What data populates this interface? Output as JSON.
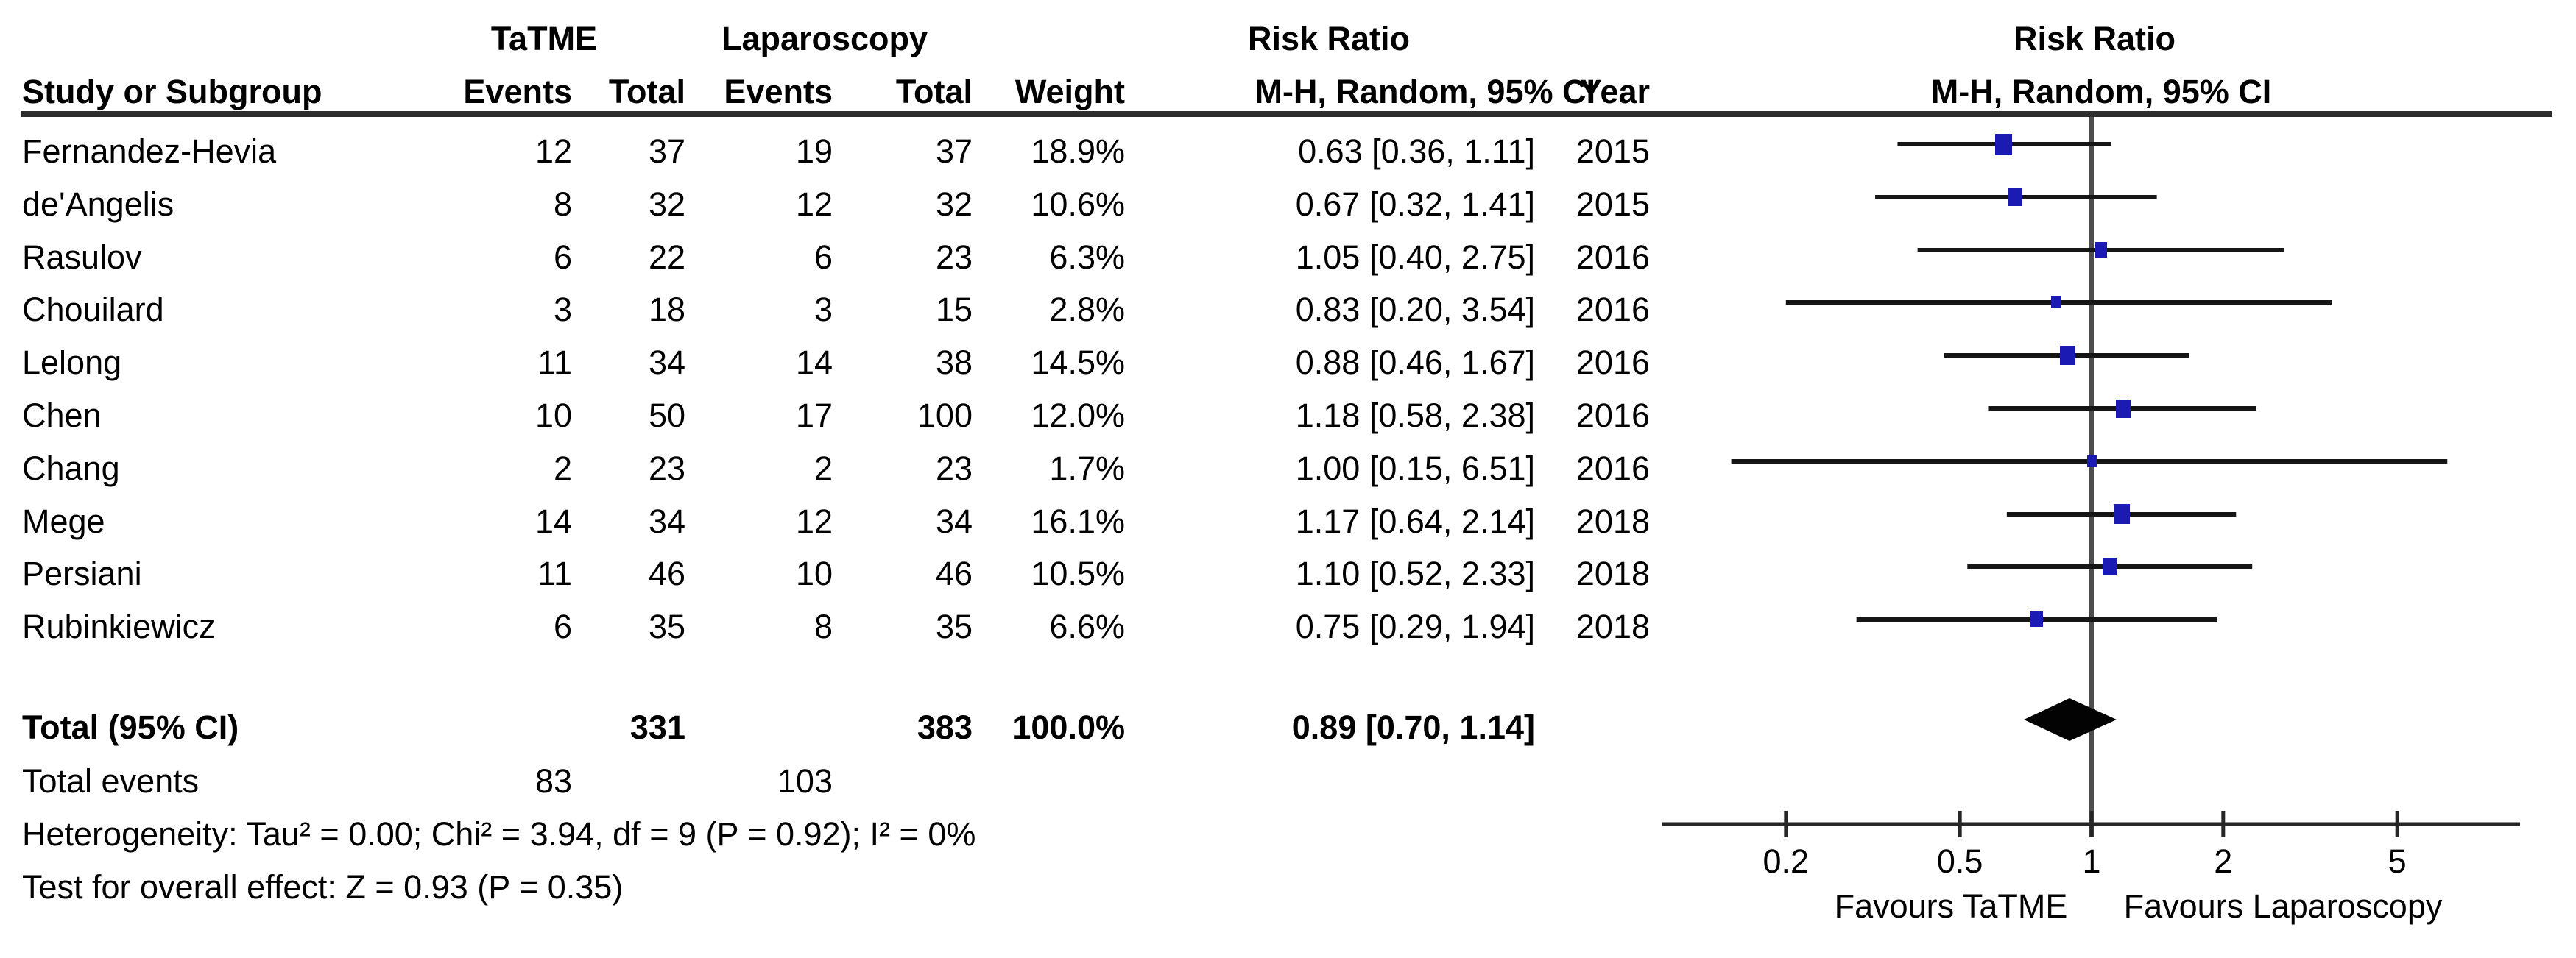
{
  "figure": {
    "group_headers": {
      "tatme": "TaTME",
      "laparoscopy": "Laparoscopy",
      "risk_ratio_col": "Risk Ratio",
      "risk_ratio_plot": "Risk Ratio"
    },
    "column_headers": {
      "study": "Study or Subgroup",
      "events1": "Events",
      "total1": "Total",
      "events2": "Events",
      "total2": "Total",
      "weight": "Weight",
      "mh_ci": "M-H, Random, 95% CI",
      "year": "Year",
      "mh_ci_plot": "M-H, Random, 95% CI"
    },
    "studies": [
      {
        "name": "Fernandez-Hevia",
        "e1": "12",
        "t1": "37",
        "e2": "19",
        "t2": "37",
        "weight": "18.9%",
        "rr_ci": "0.63 [0.36, 1.11]",
        "year": "2015",
        "rr": 0.63,
        "lo": 0.36,
        "hi": 1.11,
        "w": 18.9
      },
      {
        "name": "de'Angelis",
        "e1": "8",
        "t1": "32",
        "e2": "12",
        "t2": "32",
        "weight": "10.6%",
        "rr_ci": "0.67 [0.32, 1.41]",
        "year": "2015",
        "rr": 0.67,
        "lo": 0.32,
        "hi": 1.41,
        "w": 10.6
      },
      {
        "name": "Rasulov",
        "e1": "6",
        "t1": "22",
        "e2": "6",
        "t2": "23",
        "weight": "6.3%",
        "rr_ci": "1.05 [0.40, 2.75]",
        "year": "2016",
        "rr": 1.05,
        "lo": 0.4,
        "hi": 2.75,
        "w": 6.3
      },
      {
        "name": "Chouilard",
        "e1": "3",
        "t1": "18",
        "e2": "3",
        "t2": "15",
        "weight": "2.8%",
        "rr_ci": "0.83 [0.20, 3.54]",
        "year": "2016",
        "rr": 0.83,
        "lo": 0.2,
        "hi": 3.54,
        "w": 2.8
      },
      {
        "name": "Lelong",
        "e1": "11",
        "t1": "34",
        "e2": "14",
        "t2": "38",
        "weight": "14.5%",
        "rr_ci": "0.88 [0.46, 1.67]",
        "year": "2016",
        "rr": 0.88,
        "lo": 0.46,
        "hi": 1.67,
        "w": 14.5
      },
      {
        "name": "Chen",
        "e1": "10",
        "t1": "50",
        "e2": "17",
        "t2": "100",
        "weight": "12.0%",
        "rr_ci": "1.18 [0.58, 2.38]",
        "year": "2016",
        "rr": 1.18,
        "lo": 0.58,
        "hi": 2.38,
        "w": 12.0
      },
      {
        "name": "Chang",
        "e1": "2",
        "t1": "23",
        "e2": "2",
        "t2": "23",
        "weight": "1.7%",
        "rr_ci": "1.00 [0.15, 6.51]",
        "year": "2016",
        "rr": 1.0,
        "lo": 0.15,
        "hi": 6.51,
        "w": 1.7
      },
      {
        "name": "Mege",
        "e1": "14",
        "t1": "34",
        "e2": "12",
        "t2": "34",
        "weight": "16.1%",
        "rr_ci": "1.17 [0.64, 2.14]",
        "year": "2018",
        "rr": 1.17,
        "lo": 0.64,
        "hi": 2.14,
        "w": 16.1
      },
      {
        "name": "Persiani",
        "e1": "11",
        "t1": "46",
        "e2": "10",
        "t2": "46",
        "weight": "10.5%",
        "rr_ci": "1.10 [0.52, 2.33]",
        "year": "2018",
        "rr": 1.1,
        "lo": 0.52,
        "hi": 2.33,
        "w": 10.5
      },
      {
        "name": "Rubinkiewicz",
        "e1": "6",
        "t1": "35",
        "e2": "8",
        "t2": "35",
        "weight": "6.6%",
        "rr_ci": "0.75 [0.29, 1.94]",
        "year": "2018",
        "rr": 0.75,
        "lo": 0.29,
        "hi": 1.94,
        "w": 6.6
      }
    ],
    "total_row": {
      "label": "Total (95% CI)",
      "t1": "331",
      "t2": "383",
      "weight": "100.0%",
      "rr_ci": "0.89 [0.70, 1.14]",
      "rr": 0.89,
      "lo": 0.7,
      "hi": 1.14
    },
    "total_events": {
      "label": "Total events",
      "v1": "83",
      "v2": "103"
    },
    "footnotes": {
      "heterogeneity": "Heterogeneity: Tau² = 0.00; Chi² = 3.94, df = 9 (P = 0.92); I² = 0%",
      "overall_effect": "Test for overall effect: Z = 0.93 (P = 0.35)"
    },
    "axis": {
      "ticks": [
        0.2,
        0.5,
        1,
        2,
        5
      ],
      "favours_left": "Favours TaTME",
      "favours_right": "Favours Laparoscopy"
    },
    "colors": {
      "marker_blue": "#1b1bb3",
      "whisker": "#161616",
      "diamond": "#030303",
      "axis": "#262626",
      "null_line": "#4d4d4d",
      "rule": "#2e2e2e"
    }
  },
  "chart_data": {
    "type": "forest",
    "effect_measure": "Risk Ratio",
    "method": "M-H, Random, 95% CI",
    "x_scale": "log",
    "x_ticks": [
      0.2,
      0.5,
      1,
      2,
      5
    ],
    "x_range": [
      0.105,
      9.5
    ],
    "null_line": 1,
    "studies": [
      {
        "name": "Fernandez-Hevia",
        "rr": 0.63,
        "ci": [
          0.36,
          1.11
        ],
        "weight_pct": 18.9,
        "year": 2015
      },
      {
        "name": "de'Angelis",
        "rr": 0.67,
        "ci": [
          0.32,
          1.41
        ],
        "weight_pct": 10.6,
        "year": 2015
      },
      {
        "name": "Rasulov",
        "rr": 1.05,
        "ci": [
          0.4,
          2.75
        ],
        "weight_pct": 6.3,
        "year": 2016
      },
      {
        "name": "Chouilard",
        "rr": 0.83,
        "ci": [
          0.2,
          3.54
        ],
        "weight_pct": 2.8,
        "year": 2016
      },
      {
        "name": "Lelong",
        "rr": 0.88,
        "ci": [
          0.46,
          1.67
        ],
        "weight_pct": 14.5,
        "year": 2016
      },
      {
        "name": "Chen",
        "rr": 1.18,
        "ci": [
          0.58,
          2.38
        ],
        "weight_pct": 12.0,
        "year": 2016
      },
      {
        "name": "Chang",
        "rr": 1.0,
        "ci": [
          0.15,
          6.51
        ],
        "weight_pct": 1.7,
        "year": 2016
      },
      {
        "name": "Mege",
        "rr": 1.17,
        "ci": [
          0.64,
          2.14
        ],
        "weight_pct": 16.1,
        "year": 2018
      },
      {
        "name": "Persiani",
        "rr": 1.1,
        "ci": [
          0.52,
          2.33
        ],
        "weight_pct": 10.5,
        "year": 2018
      },
      {
        "name": "Rubinkiewicz",
        "rr": 0.75,
        "ci": [
          0.29,
          1.94
        ],
        "weight_pct": 6.6,
        "year": 2018
      }
    ],
    "total": {
      "label": "Total (95% CI)",
      "rr": 0.89,
      "ci": [
        0.7,
        1.14
      ],
      "weight_pct": 100.0,
      "tatme_events": 83,
      "tatme_total": 331,
      "laparoscopy_events": 103,
      "laparoscopy_total": 383
    },
    "heterogeneity": {
      "tau2": 0.0,
      "chi2": 3.94,
      "df": 9,
      "p": 0.92,
      "i2_pct": 0
    },
    "overall_effect": {
      "z": 0.93,
      "p": 0.35
    },
    "favours": [
      "Favours TaTME",
      "Favours Laparoscopy"
    ]
  }
}
